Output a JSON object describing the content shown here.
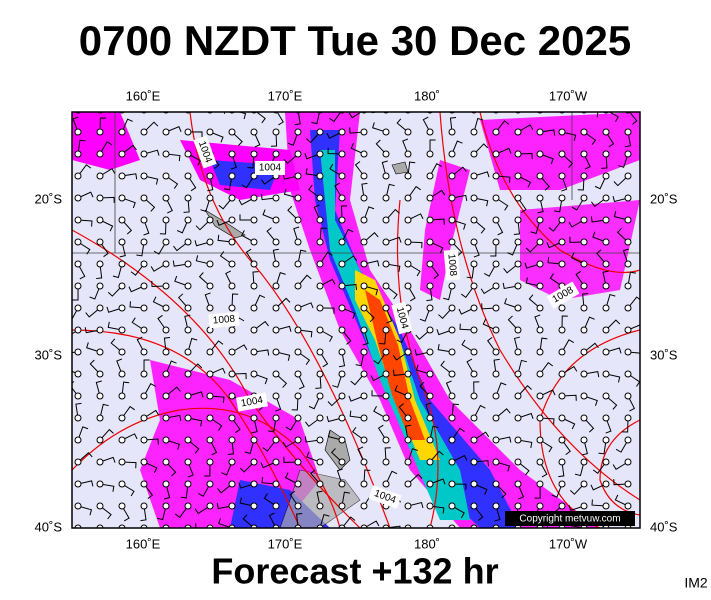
{
  "header": {
    "title": "0700 NZDT Tue 30 Dec 2025"
  },
  "axes": {
    "top": [
      "160˚E",
      "170˚E",
      "180˚",
      "170˚W"
    ],
    "bottom": [
      "160˚E",
      "170˚E",
      "180˚",
      "170˚W"
    ],
    "left": [
      "20˚S",
      "30˚S",
      "40˚S"
    ],
    "right": [
      "20˚S",
      "30˚S",
      "40˚S"
    ]
  },
  "isobars": [
    "1004",
    "1004",
    "1008",
    "1008",
    "1004",
    "1008",
    "1004",
    "1004"
  ],
  "copyright": "Copyright metvuw.com",
  "footer": {
    "forecast": "Forecast +132 hr",
    "code": "IM2"
  }
}
